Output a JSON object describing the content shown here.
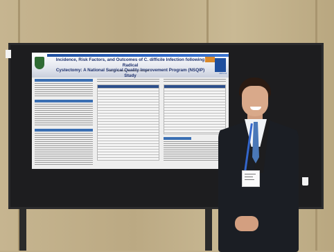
{
  "scene": {
    "description_colors": {
      "wall": "#c2b18c",
      "board": "#1d1d1f",
      "poster_header": "#1c2f6b",
      "accent": "#1f4f9e"
    }
  },
  "poster": {
    "title_line1": "Incidence, Risk Factors, and Outcomes of C. difficile Infection following Radical",
    "title_line2": "Cystectomy: A National Surgical Quality Improvement Program (NSQIP) Study",
    "authors": "Glenn A. Goudreau, MD; Wesley Chung, BS; ...",
    "right_logo_text": "MFS 14"
  },
  "person": {
    "badge_present": true
  }
}
